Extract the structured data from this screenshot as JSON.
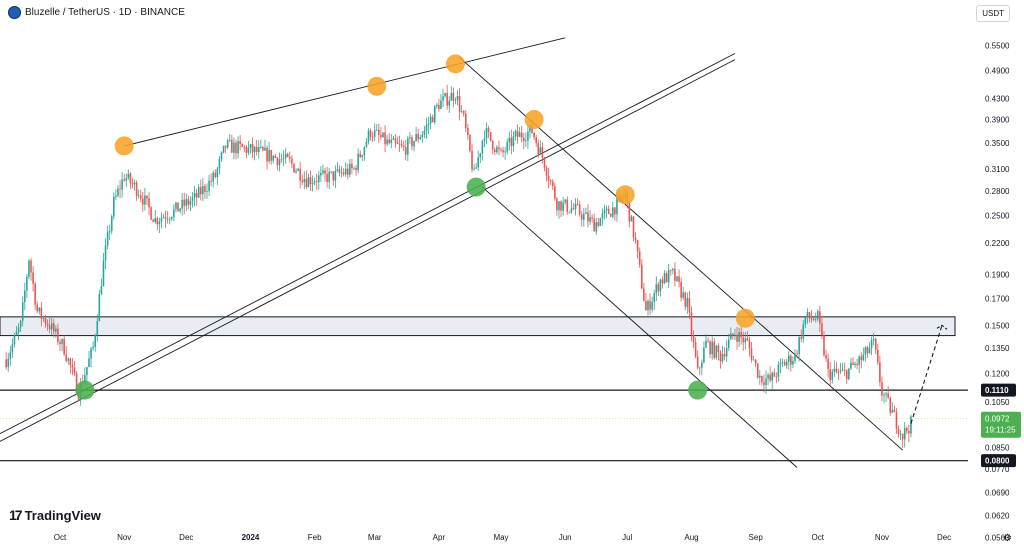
{
  "header": {
    "title": "Bluzelle / TetherUS · 1D · BINANCE"
  },
  "currency_label": "USDT",
  "brand": {
    "name": "TradingView"
  },
  "chart_data": {
    "type": "candlestick",
    "title": "Bluzelle / TetherUS · 1D · BINANCE",
    "y_scale": "log",
    "y_ticks": [
      "0.5500",
      "0.4900",
      "0.4300",
      "0.3900",
      "0.3500",
      "0.3100",
      "0.2800",
      "0.2500",
      "0.2200",
      "0.1900",
      "0.1700",
      "0.1500",
      "0.1350",
      "0.1200",
      "0.1050",
      "0.0950",
      "0.0850",
      "0.0770",
      "0.0690",
      "0.0620",
      "0.0560"
    ],
    "y_tick_values": [
      0.55,
      0.49,
      0.43,
      0.39,
      0.35,
      0.31,
      0.28,
      0.25,
      0.22,
      0.19,
      0.17,
      0.15,
      0.135,
      0.12,
      0.105,
      0.095,
      0.085,
      0.077,
      0.069,
      0.062,
      0.056
    ],
    "x_ticks": [
      "Oct",
      "Nov",
      "Dec",
      "2024",
      "Feb",
      "Mar",
      "Apr",
      "May",
      "Jun",
      "Jul",
      "Aug",
      "Sep",
      "Oct",
      "Nov",
      "Dec"
    ],
    "price_labels": [
      {
        "text": "0.1110",
        "value": 0.111,
        "style": "dark"
      },
      {
        "text": "0.0800",
        "value": 0.08,
        "style": "dark"
      },
      {
        "text": "0.0972",
        "value": 0.0972,
        "style": "green"
      }
    ],
    "countdown": "19:11:25",
    "support_zone": [
      0.143,
      0.156
    ],
    "horizontal_lines": [
      0.111,
      0.08
    ],
    "dotted_price_line": 0.0972,
    "path": [
      [
        "2023-09-05",
        0.128
      ],
      [
        "2023-09-12",
        0.15
      ],
      [
        "2023-09-16",
        0.205
      ],
      [
        "2023-09-20",
        0.16
      ],
      [
        "2023-09-26",
        0.15
      ],
      [
        "2023-10-03",
        0.135
      ],
      [
        "2023-10-10",
        0.11
      ],
      [
        "2023-10-17",
        0.135
      ],
      [
        "2023-10-22",
        0.2
      ],
      [
        "2023-10-27",
        0.265
      ],
      [
        "2023-11-01",
        0.3
      ],
      [
        "2023-11-08",
        0.28
      ],
      [
        "2023-11-16",
        0.245
      ],
      [
        "2023-11-25",
        0.255
      ],
      [
        "2023-12-05",
        0.27
      ],
      [
        "2023-12-15",
        0.3
      ],
      [
        "2023-12-20",
        0.345
      ],
      [
        "2023-12-30",
        0.34
      ],
      [
        "2024-01-10",
        0.33
      ],
      [
        "2024-01-20",
        0.32
      ],
      [
        "2024-01-28",
        0.295
      ],
      [
        "2024-02-10",
        0.3
      ],
      [
        "2024-02-20",
        0.31
      ],
      [
        "2024-02-28",
        0.37
      ],
      [
        "2024-03-07",
        0.35
      ],
      [
        "2024-03-15",
        0.34
      ],
      [
        "2024-03-25",
        0.37
      ],
      [
        "2024-04-01",
        0.42
      ],
      [
        "2024-04-09",
        0.44
      ],
      [
        "2024-04-13",
        0.39
      ],
      [
        "2024-04-18",
        0.3
      ],
      [
        "2024-04-23",
        0.37
      ],
      [
        "2024-05-01",
        0.33
      ],
      [
        "2024-05-08",
        0.36
      ],
      [
        "2024-05-16",
        0.37
      ],
      [
        "2024-05-22",
        0.32
      ],
      [
        "2024-05-28",
        0.265
      ],
      [
        "2024-06-07",
        0.255
      ],
      [
        "2024-06-15",
        0.24
      ],
      [
        "2024-06-25",
        0.26
      ],
      [
        "2024-06-30",
        0.275
      ],
      [
        "2024-07-05",
        0.22
      ],
      [
        "2024-07-10",
        0.16
      ],
      [
        "2024-07-17",
        0.185
      ],
      [
        "2024-07-23",
        0.19
      ],
      [
        "2024-07-30",
        0.165
      ],
      [
        "2024-08-04",
        0.12
      ],
      [
        "2024-08-08",
        0.138
      ],
      [
        "2024-08-15",
        0.13
      ],
      [
        "2024-08-22",
        0.145
      ],
      [
        "2024-08-28",
        0.138
      ],
      [
        "2024-09-03",
        0.118
      ],
      [
        "2024-09-08",
        0.116
      ],
      [
        "2024-09-14",
        0.125
      ],
      [
        "2024-09-20",
        0.13
      ],
      [
        "2024-09-25",
        0.155
      ],
      [
        "2024-10-01",
        0.155
      ],
      [
        "2024-10-06",
        0.12
      ],
      [
        "2024-10-14",
        0.12
      ],
      [
        "2024-10-22",
        0.128
      ],
      [
        "2024-10-28",
        0.138
      ],
      [
        "2024-11-01",
        0.11
      ],
      [
        "2024-11-06",
        0.1
      ],
      [
        "2024-11-11",
        0.09
      ],
      [
        "2024-11-15",
        0.095
      ]
    ],
    "projection": [
      [
        "2024-11-15",
        0.095
      ],
      [
        "2024-11-30",
        0.15
      ]
    ],
    "trendlines": [
      {
        "name": "top-wedge",
        "points": [
          [
            "2023-11-01",
            0.345
          ],
          [
            "2024-06-01",
            0.57
          ]
        ]
      },
      {
        "name": "rising-channel-a",
        "points": [
          [
            "2023-08-20",
            0.085
          ],
          [
            "2024-08-22",
            0.53
          ]
        ]
      },
      {
        "name": "rising-channel-b",
        "points": [
          [
            "2023-08-20",
            0.082
          ],
          [
            "2024-08-22",
            0.515
          ]
        ]
      },
      {
        "name": "falling-upper",
        "points": [
          [
            "2024-04-11",
            0.52
          ],
          [
            "2024-11-11",
            0.084
          ]
        ]
      },
      {
        "name": "falling-lower",
        "points": [
          [
            "2024-04-22",
            0.285
          ],
          [
            "2024-09-21",
            0.0775
          ]
        ]
      }
    ],
    "markers": [
      {
        "color": "orange",
        "date": "2023-11-01",
        "value": 0.345
      },
      {
        "color": "orange",
        "date": "2024-03-02",
        "value": 0.455
      },
      {
        "color": "orange",
        "date": "2024-04-09",
        "value": 0.505
      },
      {
        "color": "orange",
        "date": "2024-05-17",
        "value": 0.39
      },
      {
        "color": "orange",
        "date": "2024-06-30",
        "value": 0.275
      },
      {
        "color": "orange",
        "date": "2024-08-27",
        "value": 0.155
      },
      {
        "color": "green",
        "date": "2023-10-13",
        "value": 0.111
      },
      {
        "color": "green",
        "date": "2024-04-19",
        "value": 0.285
      },
      {
        "color": "green",
        "date": "2024-08-04",
        "value": 0.111
      }
    ],
    "colors": {
      "up": "#26a69a",
      "down": "#ef5350",
      "orange": "#f7a325",
      "green": "#4caf50",
      "line": "#131722"
    }
  }
}
